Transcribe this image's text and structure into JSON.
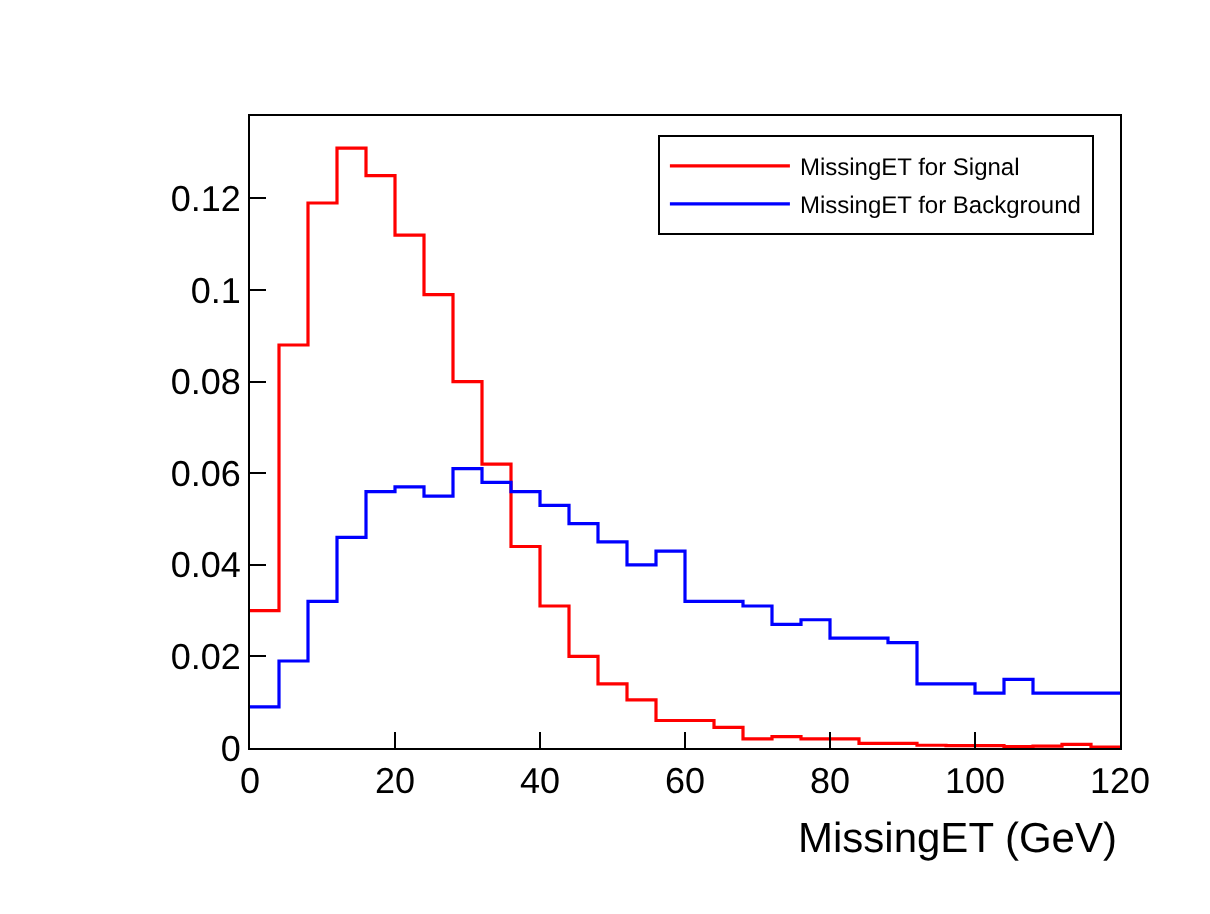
{
  "chart_data": {
    "type": "histogram",
    "xlabel": "MissingET (GeV)",
    "bins": [
      0,
      4,
      8,
      12,
      16,
      20,
      24,
      28,
      32,
      36,
      40,
      44,
      48,
      52,
      56,
      60,
      64,
      68,
      72,
      76,
      80,
      84,
      88,
      92,
      96,
      100,
      104,
      108,
      112,
      116,
      120
    ],
    "series": [
      {
        "name": "MissingET for Signal",
        "color": "#ff0000",
        "values": [
          0.03,
          0.088,
          0.119,
          0.131,
          0.125,
          0.112,
          0.099,
          0.08,
          0.062,
          0.044,
          0.031,
          0.02,
          0.014,
          0.0105,
          0.006,
          0.006,
          0.0045,
          0.002,
          0.0025,
          0.002,
          0.002,
          0.001,
          0.001,
          0.0006,
          0.0005,
          0.0005,
          0.0003,
          0.0004,
          0.0008,
          0.0002
        ]
      },
      {
        "name": "MissingET for Background",
        "color": "#0000ff",
        "values": [
          0.009,
          0.019,
          0.032,
          0.046,
          0.056,
          0.057,
          0.055,
          0.061,
          0.058,
          0.056,
          0.053,
          0.049,
          0.045,
          0.04,
          0.043,
          0.032,
          0.032,
          0.031,
          0.027,
          0.028,
          0.024,
          0.024,
          0.023,
          0.014,
          0.014,
          0.012,
          0.015,
          0.012,
          0.012,
          0.012
        ]
      }
    ],
    "xlim": [
      0,
      120
    ],
    "xticks": [
      0,
      20,
      40,
      60,
      80,
      100,
      120
    ],
    "ylim": [
      0,
      0.138
    ],
    "yticks": [
      0,
      0.02,
      0.04,
      0.06,
      0.08,
      0.1,
      0.12
    ],
    "legend": "top right"
  }
}
